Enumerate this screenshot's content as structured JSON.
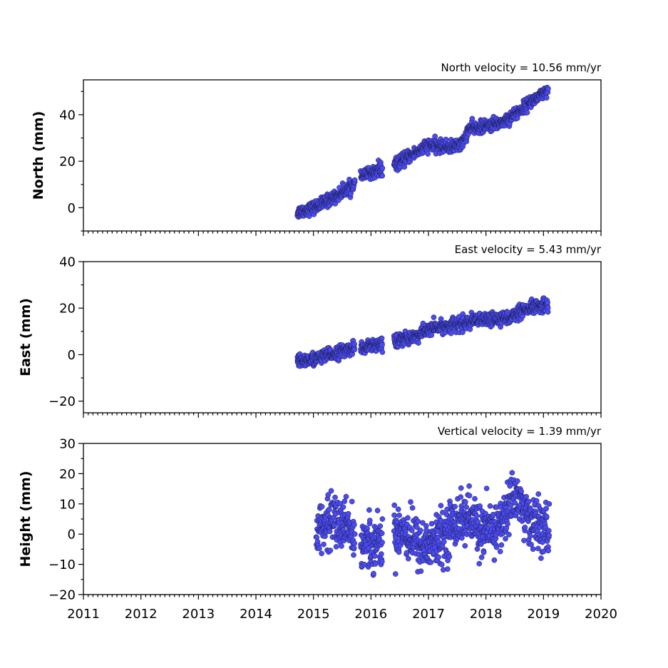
{
  "chart_data": [
    {
      "type": "scatter",
      "title": "North velocity = 10.56 mm/yr",
      "ylabel": "North (mm)",
      "xlim": [
        2011,
        2020
      ],
      "ylim": [
        -10,
        55
      ],
      "yticks": [
        0,
        20,
        40
      ],
      "xticks": [
        2011,
        2012,
        2013,
        2014,
        2015,
        2016,
        2017,
        2018,
        2019,
        2020
      ],
      "x_range": [
        2014.72,
        2019.08
      ],
      "trend_knots": [
        [
          2014.72,
          -2
        ],
        [
          2015.0,
          0
        ],
        [
          2015.4,
          5
        ],
        [
          2015.7,
          10
        ],
        [
          2015.8,
          13
        ],
        [
          2016.1,
          16
        ],
        [
          2016.4,
          18
        ],
        [
          2016.45,
          19
        ],
        [
          2016.8,
          24
        ],
        [
          2017.0,
          27
        ],
        [
          2017.4,
          26
        ],
        [
          2017.6,
          28
        ],
        [
          2017.7,
          34
        ],
        [
          2018.0,
          35
        ],
        [
          2018.3,
          37
        ],
        [
          2018.6,
          42
        ],
        [
          2018.8,
          46
        ],
        [
          2019.08,
          50
        ]
      ],
      "scatter_sd": 1.3,
      "gaps": [
        [
          2015.72,
          2015.82
        ],
        [
          2016.2,
          2016.4
        ]
      ],
      "n_points": 1100
    },
    {
      "type": "scatter",
      "title": "East velocity = 5.43 mm/yr",
      "ylabel": "East (mm)",
      "xlim": [
        2011,
        2020
      ],
      "ylim": [
        -25,
        40
      ],
      "yticks": [
        -20,
        0,
        20,
        40
      ],
      "xticks": [
        2011,
        2012,
        2013,
        2014,
        2015,
        2016,
        2017,
        2018,
        2019,
        2020
      ],
      "x_range": [
        2014.72,
        2019.08
      ],
      "trend_knots": [
        [
          2014.72,
          -3
        ],
        [
          2015.0,
          -2
        ],
        [
          2015.3,
          0
        ],
        [
          2015.7,
          3
        ],
        [
          2015.8,
          3
        ],
        [
          2016.2,
          5
        ],
        [
          2016.4,
          6
        ],
        [
          2016.8,
          8
        ],
        [
          2017.0,
          11
        ],
        [
          2017.5,
          13
        ],
        [
          2018.0,
          15
        ],
        [
          2018.4,
          16
        ],
        [
          2018.8,
          20
        ],
        [
          2019.08,
          22
        ]
      ],
      "scatter_sd": 1.4,
      "gaps": [
        [
          2015.72,
          2015.82
        ],
        [
          2016.2,
          2016.4
        ]
      ],
      "n_points": 1100
    },
    {
      "type": "scatter",
      "title": "Vertical velocity = 1.39 mm/yr",
      "ylabel": "Height (mm)",
      "xlabel": "",
      "xlim": [
        2011,
        2020
      ],
      "ylim": [
        -20,
        30
      ],
      "yticks": [
        -20,
        -10,
        0,
        10,
        20,
        30
      ],
      "xticks": [
        2011,
        2012,
        2013,
        2014,
        2015,
        2016,
        2017,
        2018,
        2019,
        2020
      ],
      "x_range": [
        2015.05,
        2019.1
      ],
      "trend_knots": [
        [
          2015.05,
          0
        ],
        [
          2015.3,
          5
        ],
        [
          2015.6,
          2
        ],
        [
          2015.8,
          -3
        ],
        [
          2016.2,
          -2
        ],
        [
          2016.5,
          2
        ],
        [
          2016.9,
          -4
        ],
        [
          2017.2,
          -2
        ],
        [
          2017.5,
          5
        ],
        [
          2017.7,
          5
        ],
        [
          2018.0,
          0
        ],
        [
          2018.3,
          4
        ],
        [
          2018.5,
          14
        ],
        [
          2018.7,
          6
        ],
        [
          2019.1,
          0
        ]
      ],
      "scatter_sd": 4.2,
      "gaps": [
        [
          2015.72,
          2015.82
        ],
        [
          2016.2,
          2016.4
        ]
      ],
      "n_points": 1050
    }
  ]
}
